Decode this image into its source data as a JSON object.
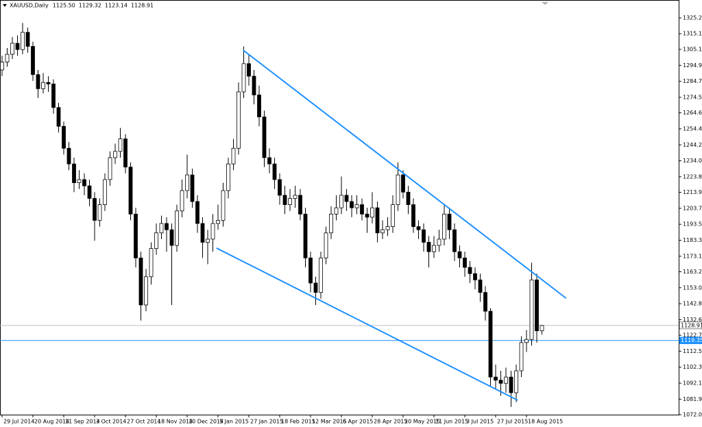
{
  "chart_data": {
    "type": "candlestick",
    "title": "XAUUSD,Daily",
    "header_values": [
      {
        "value": 1125.5,
        "label": "1125.50"
      },
      {
        "value": 1129.32,
        "label": "1129.32"
      },
      {
        "value": 1123.14,
        "label": "1123.14"
      },
      {
        "value": 1128.91,
        "label": "1128.91"
      }
    ],
    "categories": [
      "29 Jul 2014",
      null,
      null,
      null,
      null,
      null,
      "20 Aug 2014",
      null,
      null,
      null,
      null,
      null,
      "11 Sep 2014",
      null,
      null,
      null,
      null,
      null,
      "3 Oct 2014",
      null,
      null,
      null,
      null,
      null,
      "27 Oct 2014",
      null,
      null,
      null,
      null,
      null,
      "18 Nov 2014",
      null,
      null,
      null,
      null,
      null,
      "10 Dec 2014",
      null,
      null,
      null,
      null,
      null,
      "5 Jan 2015",
      null,
      null,
      null,
      null,
      null,
      "27 Jan 2015",
      null,
      null,
      null,
      null,
      null,
      "18 Feb 2015",
      null,
      null,
      null,
      null,
      null,
      "12 Mar 2015",
      null,
      null,
      null,
      null,
      null,
      "6 Apr 2015",
      null,
      null,
      null,
      null,
      null,
      "28 Apr 2015",
      null,
      null,
      null,
      null,
      null,
      "20 May 2015",
      null,
      null,
      null,
      null,
      null,
      "11 Jun 2015",
      null,
      null,
      null,
      null,
      null,
      "3 Jul 2015",
      null,
      null,
      null,
      null,
      null,
      "27 Jul 2015",
      null,
      null,
      null,
      null,
      null,
      "18 Aug 2015",
      null,
      null,
      null
    ],
    "open": [
      1292,
      1297,
      1302,
      1309,
      1305,
      1316,
      1307,
      1289,
      1280,
      1284,
      1283,
      1268,
      1256,
      1242,
      1232,
      1220,
      1222,
      1218,
      1210,
      1196,
      1206,
      1222,
      1236,
      1240,
      1248,
      1230,
      1200,
      1172,
      1142,
      1160,
      1178,
      1188,
      1194,
      1190,
      1180,
      1202,
      1215,
      1225,
      1208,
      1194,
      1182,
      1184,
      1194,
      1196,
      1215,
      1232,
      1242,
      1278,
      1296,
      1288,
      1276,
      1262,
      1236,
      1232,
      1222,
      1212,
      1206,
      1210,
      1212,
      1200,
      1172,
      1156,
      1150,
      1172,
      1188,
      1200,
      1204,
      1212,
      1208,
      1204,
      1206,
      1200,
      1198,
      1204,
      1188,
      1190,
      1192,
      1206,
      1225,
      1214,
      1206,
      1192,
      1190,
      1182,
      1176,
      1180,
      1184,
      1200,
      1190,
      1176,
      1172,
      1166,
      1162,
      1158,
      1150,
      1138,
      1096,
      1094,
      1092,
      1096,
      1086,
      1100,
      1118,
      1120,
      1158,
      1125.5
    ],
    "high": [
      1301,
      1306,
      1313,
      1314,
      1322,
      1319,
      1310,
      1292,
      1290,
      1288,
      1286,
      1271,
      1259,
      1246,
      1236,
      1228,
      1226,
      1222,
      1214,
      1210,
      1226,
      1240,
      1245,
      1255,
      1251,
      1233,
      1204,
      1176,
      1165,
      1182,
      1194,
      1199,
      1198,
      1194,
      1206,
      1222,
      1238,
      1229,
      1212,
      1198,
      1190,
      1200,
      1206,
      1220,
      1236,
      1248,
      1284,
      1307,
      1302,
      1292,
      1282,
      1266,
      1242,
      1236,
      1226,
      1218,
      1216,
      1218,
      1216,
      1204,
      1176,
      1160,
      1176,
      1192,
      1205,
      1212,
      1224,
      1216,
      1212,
      1212,
      1210,
      1204,
      1214,
      1208,
      1196,
      1198,
      1212,
      1233,
      1228,
      1218,
      1210,
      1196,
      1194,
      1186,
      1186,
      1190,
      1206,
      1204,
      1194,
      1180,
      1176,
      1170,
      1166,
      1162,
      1154,
      1140,
      1104,
      1100,
      1102,
      1100,
      1104,
      1122,
      1126,
      1169,
      1162,
      1129.32
    ],
    "low": [
      1288,
      1294,
      1299,
      1301,
      1302,
      1303,
      1285,
      1274,
      1277,
      1278,
      1264,
      1252,
      1238,
      1228,
      1214,
      1216,
      1212,
      1205,
      1183,
      1192,
      1202,
      1218,
      1232,
      1236,
      1226,
      1196,
      1166,
      1132,
      1138,
      1155,
      1174,
      1184,
      1176,
      1142,
      1176,
      1198,
      1210,
      1204,
      1188,
      1172,
      1168,
      1176,
      1190,
      1192,
      1210,
      1228,
      1238,
      1274,
      1282,
      1270,
      1256,
      1230,
      1226,
      1216,
      1206,
      1200,
      1202,
      1204,
      1196,
      1166,
      1150,
      1142,
      1146,
      1168,
      1184,
      1196,
      1200,
      1202,
      1198,
      1200,
      1196,
      1188,
      1194,
      1182,
      1184,
      1186,
      1188,
      1202,
      1210,
      1200,
      1188,
      1184,
      1176,
      1166,
      1172,
      1176,
      1180,
      1184,
      1170,
      1166,
      1160,
      1156,
      1152,
      1144,
      1132,
      1090,
      1088,
      1084,
      1086,
      1077,
      1080,
      1096,
      1112,
      1116,
      1118,
      1123.14
    ],
    "close": [
      1297,
      1302,
      1309,
      1305,
      1316,
      1307,
      1289,
      1280,
      1284,
      1283,
      1268,
      1256,
      1242,
      1232,
      1220,
      1222,
      1218,
      1210,
      1196,
      1206,
      1222,
      1236,
      1240,
      1248,
      1230,
      1200,
      1172,
      1142,
      1160,
      1178,
      1188,
      1194,
      1190,
      1180,
      1202,
      1215,
      1225,
      1208,
      1194,
      1182,
      1184,
      1194,
      1196,
      1215,
      1232,
      1242,
      1278,
      1296,
      1288,
      1276,
      1262,
      1236,
      1232,
      1222,
      1212,
      1206,
      1210,
      1212,
      1200,
      1172,
      1156,
      1150,
      1172,
      1188,
      1200,
      1204,
      1212,
      1208,
      1204,
      1206,
      1200,
      1198,
      1204,
      1188,
      1190,
      1192,
      1206,
      1225,
      1214,
      1206,
      1192,
      1190,
      1182,
      1176,
      1180,
      1184,
      1200,
      1190,
      1176,
      1172,
      1166,
      1162,
      1158,
      1150,
      1138,
      1096,
      1094,
      1092,
      1096,
      1086,
      1100,
      1118,
      1120,
      1158,
      1125.5,
      1128.91
    ],
    "color": "#000000",
    "ylim": [
      1072,
      1336.6
    ],
    "yticks": [
      {
        "value": 1072,
        "label": "1072.00"
      },
      {
        "value": 1081.9,
        "label": "1081.90"
      },
      {
        "value": 1092.1,
        "label": "1092.10"
      },
      {
        "value": 1102.3,
        "label": "1102.30"
      },
      {
        "value": 1112.5,
        "label": "1112.50"
      },
      {
        "value": 1122.7,
        "label": "1122.70"
      },
      {
        "value": 1132.6,
        "label": "1132.60"
      },
      {
        "value": 1142.8,
        "label": "1142.80"
      },
      {
        "value": 1153,
        "label": "1153.00"
      },
      {
        "value": 1163.2,
        "label": "1163.20"
      },
      {
        "value": 1173.1,
        "label": "1173.10"
      },
      {
        "value": 1183.3,
        "label": "1183.30"
      },
      {
        "value": 1193.5,
        "label": "1193.50"
      },
      {
        "value": 1203.7,
        "label": "1203.70"
      },
      {
        "value": 1213.9,
        "label": "1213.90"
      },
      {
        "value": 1223.8,
        "label": "1223.80"
      },
      {
        "value": 1234,
        "label": "1234.00"
      },
      {
        "value": 1244.2,
        "label": "1244.20"
      },
      {
        "value": 1254.4,
        "label": "1254.40"
      },
      {
        "value": 1264.6,
        "label": "1264.60"
      },
      {
        "value": 1274.5,
        "label": "1274.50"
      },
      {
        "value": 1284.7,
        "label": "1284.70"
      },
      {
        "value": 1294.9,
        "label": "1294.90"
      },
      {
        "value": 1305.1,
        "label": "1305.10"
      },
      {
        "value": 1315.1,
        "label": "1315.10"
      },
      {
        "value": 1325.2,
        "label": "1325.20"
      }
    ],
    "hlines": [
      {
        "value": 1128.91,
        "label": "1128.91",
        "color": "#c0c0c0"
      },
      {
        "value": 1119.35,
        "label": "1119.35",
        "color": "#1e90ff"
      }
    ],
    "trendlines": [
      {
        "x": [
          46.9,
          109.7
        ],
        "y": [
          1304.6,
          1146.3
        ],
        "color": "#1e90ff"
      },
      {
        "x": [
          41.7,
          100.3
        ],
        "y": [
          1178.3,
          1081.2
        ],
        "color": "#1e90ff"
      }
    ]
  }
}
